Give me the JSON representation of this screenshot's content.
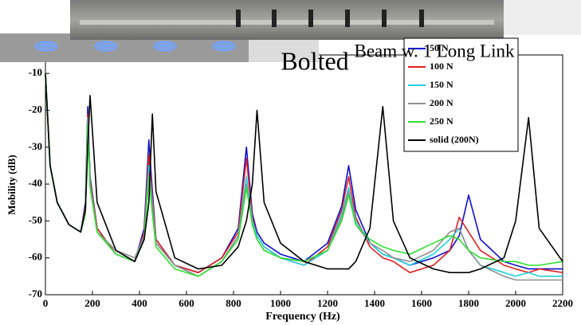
{
  "chart_data": {
    "type": "line",
    "title": "Bolted",
    "subtitle": "Beam w. 1 Long Link",
    "x_label": "Frequency (Hz)",
    "y_label": "Mobility (dB)",
    "x": [
      0,
      20,
      50,
      100,
      150,
      170,
      180,
      190,
      220,
      300,
      380,
      420,
      440,
      455,
      470,
      550,
      650,
      750,
      820,
      855,
      880,
      900,
      930,
      1000,
      1100,
      1200,
      1260,
      1290,
      1320,
      1380,
      1435,
      1480,
      1550,
      1650,
      1720,
      1760,
      1800,
      1850,
      1950,
      2000,
      2055,
      2100,
      2200
    ],
    "series": [
      {
        "name": "50 N",
        "color": "#1010d0",
        "values": [
          -10,
          -35,
          -45,
          -51,
          -53,
          -45,
          -19,
          -38,
          -52,
          -59,
          -61,
          -52,
          -28,
          -42,
          -55,
          -62,
          -64,
          -60,
          -52,
          -30,
          -48,
          -53,
          -56,
          -59,
          -61,
          -56,
          -46,
          -35,
          -47,
          -56,
          -59,
          -60,
          -62,
          -60,
          -58,
          -54,
          -43,
          -55,
          -61,
          -62,
          -63,
          -63,
          -63
        ]
      },
      {
        "name": "100 N",
        "color": "#e02020",
        "values": [
          -10,
          -35,
          -45,
          -51,
          -53,
          -46,
          -21,
          -39,
          -52,
          -59,
          -61,
          -53,
          -32,
          -44,
          -55,
          -62,
          -64,
          -60,
          -53,
          -33,
          -49,
          -54,
          -57,
          -60,
          -62,
          -57,
          -47,
          -38,
          -49,
          -57,
          -60,
          -61,
          -64,
          -62,
          -58,
          -49,
          -53,
          -58,
          -62,
          -63,
          -64,
          -63,
          -64
        ]
      },
      {
        "name": "150 N",
        "color": "#20d0e0",
        "values": [
          -10,
          -35,
          -45,
          -51,
          -53,
          -47,
          -22,
          -40,
          -53,
          -59,
          -61,
          -54,
          -35,
          -46,
          -56,
          -62,
          -65,
          -61,
          -54,
          -38,
          -50,
          -54,
          -57,
          -60,
          -62,
          -58,
          -48,
          -41,
          -50,
          -56,
          -59,
          -60,
          -62,
          -59,
          -55,
          -52,
          -58,
          -62,
          -64,
          -65,
          -64,
          -65,
          -65
        ]
      },
      {
        "name": "200 N",
        "color": "#909090",
        "values": [
          -10,
          -35,
          -45,
          -51,
          -53,
          -47,
          -22,
          -40,
          -53,
          -58,
          -60,
          -54,
          -37,
          -47,
          -56,
          -62,
          -65,
          -61,
          -54,
          -40,
          -51,
          -55,
          -58,
          -60,
          -61,
          -58,
          -49,
          -42,
          -51,
          -56,
          -58,
          -60,
          -61,
          -58,
          -53,
          -52,
          -58,
          -62,
          -65,
          -66,
          -66,
          -66,
          -66
        ]
      },
      {
        "name": "250 N",
        "color": "#30e030",
        "values": [
          -10,
          -35,
          -45,
          -51,
          -53,
          -48,
          -24,
          -41,
          -53,
          -59,
          -61,
          -55,
          -38,
          -48,
          -57,
          -63,
          -65,
          -61,
          -55,
          -41,
          -51,
          -55,
          -58,
          -60,
          -61,
          -58,
          -50,
          -43,
          -51,
          -55,
          -57,
          -58,
          -59,
          -56,
          -54,
          -55,
          -58,
          -60,
          -61,
          -61,
          -62,
          -62,
          -61
        ]
      },
      {
        "name": "solid (200N)",
        "color": "#000000",
        "values": [
          -10,
          -35,
          -45,
          -51,
          -53,
          -47,
          -30,
          -16,
          -45,
          -58,
          -61,
          -55,
          -45,
          -21,
          -42,
          -60,
          -63,
          -62,
          -57,
          -50,
          -40,
          -20,
          -45,
          -56,
          -61,
          -63,
          -63,
          -63,
          -61,
          -52,
          -19,
          -50,
          -60,
          -63,
          -64,
          -64,
          -64,
          -63,
          -60,
          -50,
          -22,
          -52,
          -61
        ]
      }
    ],
    "xlim": [
      0,
      2200
    ],
    "xticks": [
      0,
      200,
      400,
      600,
      800,
      1000,
      1200,
      1400,
      1600,
      1800,
      2000,
      2200
    ],
    "ylim": [
      -70,
      -5
    ],
    "yticks": [
      -10,
      -20,
      -30,
      -40,
      -50,
      -60,
      -70
    ]
  }
}
